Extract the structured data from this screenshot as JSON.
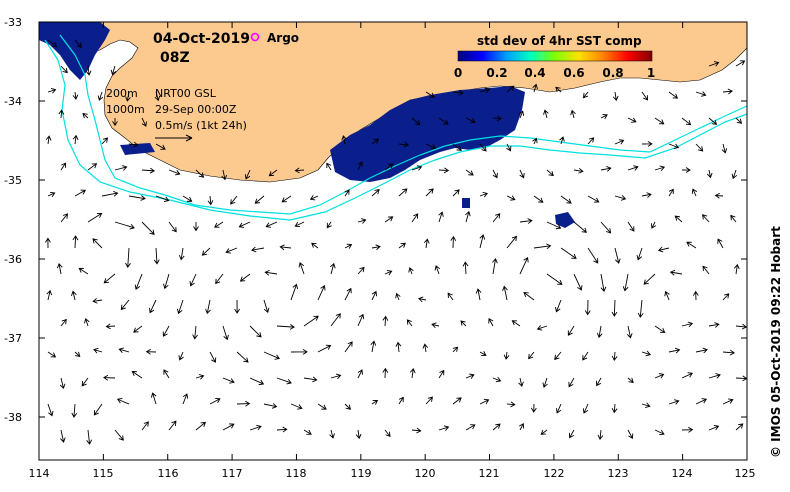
{
  "header": {
    "date": "04-Oct-2019",
    "time": "08Z",
    "argo_label": "Argo",
    "argo_color": "#ff00ff"
  },
  "legend": {
    "iso_200": "200m",
    "iso_1000": "1000m",
    "product": "NRT00 GSL",
    "product_time": "29-Sep 00:00Z",
    "scale_text": "0.5m/s (1kt 24h)"
  },
  "colorbar": {
    "title": "std dev of 4hr SST comp",
    "ticks": [
      "0",
      "0.2",
      "0.4",
      "0.6",
      "0.8",
      "1"
    ],
    "colors": [
      "#000080",
      "#0000ff",
      "#00a0ff",
      "#00ffc0",
      "#80ff00",
      "#ffe000",
      "#ff8000",
      "#ff0000",
      "#800000"
    ]
  },
  "axes": {
    "x_ticks": [
      "114",
      "115",
      "116",
      "117",
      "118",
      "119",
      "120",
      "121",
      "122",
      "123",
      "124",
      "125"
    ],
    "y_ticks": [
      "-33",
      "-34",
      "-35",
      "-36",
      "-37",
      "-38"
    ]
  },
  "credit": "© IMOS 05-Oct-2019 09:22 Hobart",
  "colors": {
    "land": "#fcc98f",
    "contour": "#00e0e0",
    "sst_patch": "#0a1e8c"
  }
}
